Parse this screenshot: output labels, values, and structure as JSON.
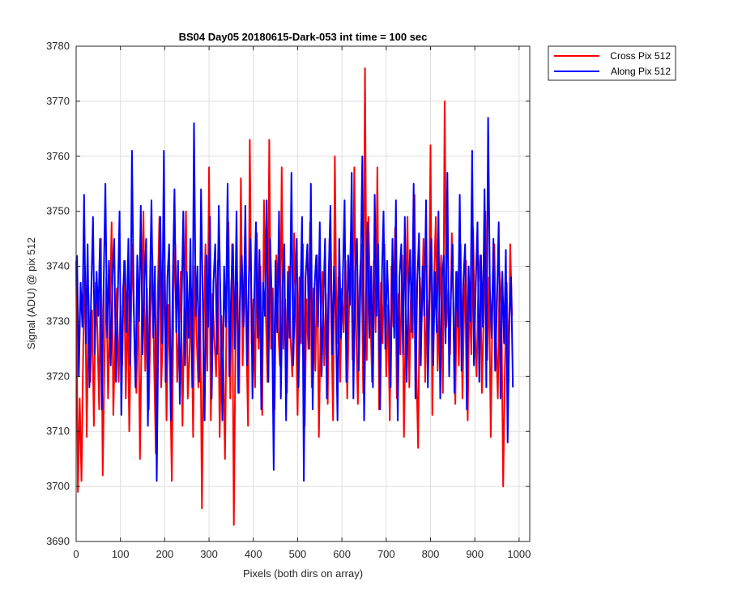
{
  "chart_data": {
    "type": "line",
    "title": "BS04 Day05 20180615-Dark-053 int time = 100 sec",
    "xlabel": "Pixels (both dirs on array)",
    "ylabel": "Signal (ADU) @ pix 512",
    "xlim": [
      0,
      1024
    ],
    "ylim": [
      3690,
      3780
    ],
    "xticks": [
      0,
      100,
      200,
      300,
      400,
      500,
      600,
      700,
      800,
      900,
      1000
    ],
    "yticks": [
      3690,
      3700,
      3710,
      3720,
      3730,
      3740,
      3750,
      3760,
      3770,
      3780
    ],
    "grid": true,
    "legend_position": "outside-top-right",
    "series": [
      {
        "name": "Cross Pix 512",
        "color": "#ff0000",
        "x_start": 0,
        "x_step": 4,
        "values": [
          3741,
          3699,
          3716,
          3701,
          3726,
          3740,
          3709,
          3735,
          3719,
          3732,
          3711,
          3737,
          3728,
          3714,
          3745,
          3702,
          3724,
          3738,
          3716,
          3731,
          3748,
          3713,
          3727,
          3736,
          3719,
          3733,
          3722,
          3741,
          3716,
          3735,
          3710,
          3731,
          3744,
          3724,
          3717,
          3737,
          3705,
          3729,
          3750,
          3721,
          3736,
          3714,
          3731,
          3742,
          3722,
          3706,
          3734,
          3749,
          3718,
          3728,
          3740,
          3712,
          3733,
          3722,
          3701,
          3735,
          3744,
          3719,
          3728,
          3739,
          3711,
          3732,
          3750,
          3716,
          3724,
          3736,
          3709,
          3740,
          3727,
          3718,
          3734,
          3696,
          3729,
          3744,
          3721,
          3758,
          3712,
          3735,
          3727,
          3720,
          3741,
          3709,
          3731,
          3723,
          3705,
          3735,
          3748,
          3716,
          3744,
          3693,
          3729,
          3737,
          3717,
          3756,
          3722,
          3739,
          3729,
          3711,
          3763,
          3726,
          3734,
          3718,
          3746,
          3725,
          3740,
          3713,
          3752,
          3732,
          3719,
          3763,
          3725,
          3736,
          3714,
          3742,
          3729,
          3722,
          3758,
          3725,
          3734,
          3717,
          3740,
          3727,
          3720,
          3746,
          3731,
          3713,
          3738,
          3726,
          3744,
          3711,
          3734,
          3725,
          3748,
          3718,
          3736,
          3721,
          3742,
          3709,
          3730,
          3739,
          3722,
          3735,
          3715,
          3745,
          3730,
          3712,
          3760,
          3726,
          3738,
          3719,
          3736,
          3728,
          3741,
          3716,
          3732,
          3746,
          3723,
          3758,
          3729,
          3715,
          3737,
          3744,
          3717,
          3776,
          3723,
          3749,
          3733,
          3719,
          3741,
          3728,
          3758,
          3714,
          3737,
          3726,
          3744,
          3720,
          3733,
          3712,
          3740,
          3729,
          3747,
          3716,
          3735,
          3724,
          3742,
          3709,
          3731,
          3749,
          3718,
          3736,
          3727,
          3753,
          3722,
          3707,
          3738,
          3730,
          3745,
          3719,
          3734,
          3726,
          3762,
          3713,
          3738,
          3749,
          3721,
          3733,
          3742,
          3717,
          3770,
          3729,
          3736,
          3724,
          3746,
          3731,
          3715,
          3739,
          3722,
          3744,
          3716,
          3733,
          3741,
          3712,
          3736,
          3724,
          3747,
          3729,
          3720,
          3737,
          3742,
          3717,
          3731,
          3750,
          3723,
          3738,
          3709,
          3735,
          3744,
          3727,
          3716,
          3739,
          3733,
          3700,
          3722,
          3737,
          3719,
          3744,
          3731
        ]
      },
      {
        "name": "Along Pix 512",
        "color": "#0000ff",
        "x_start": 2,
        "x_step": 4,
        "values": [
          3742,
          3720,
          3737,
          3729,
          3753,
          3726,
          3744,
          3718,
          3735,
          3749,
          3724,
          3739,
          3731,
          3745,
          3714,
          3736,
          3755,
          3727,
          3741,
          3722,
          3738,
          3745,
          3719,
          3734,
          3750,
          3713,
          3736,
          3741,
          3728,
          3745,
          3722,
          3761,
          3733,
          3718,
          3742,
          3730,
          3751,
          3724,
          3737,
          3745,
          3711,
          3734,
          3752,
          3727,
          3740,
          3701,
          3732,
          3749,
          3726,
          3761,
          3719,
          3738,
          3744,
          3712,
          3736,
          3754,
          3728,
          3741,
          3715,
          3733,
          3750,
          3722,
          3739,
          3727,
          3745,
          3718,
          3766,
          3731,
          3740,
          3719,
          3754,
          3733,
          3712,
          3742,
          3729,
          3749,
          3716,
          3737,
          3744,
          3724,
          3751,
          3733,
          3712,
          3740,
          3729,
          3755,
          3720,
          3736,
          3744,
          3725,
          3750,
          3717,
          3734,
          3742,
          3729,
          3751,
          3722,
          3738,
          3745,
          3716,
          3733,
          3748,
          3727,
          3743,
          3714,
          3737,
          3731,
          3752,
          3719,
          3745,
          3733,
          3703,
          3741,
          3728,
          3750,
          3716,
          3736,
          3744,
          3712,
          3739,
          3727,
          3757,
          3722,
          3735,
          3745,
          3718,
          3733,
          3749,
          3701,
          3738,
          3744,
          3725,
          3755,
          3714,
          3736,
          3742,
          3729,
          3748,
          3720,
          3733,
          3745,
          3716,
          3738,
          3751,
          3724,
          3740,
          3731,
          3712,
          3745,
          3727,
          3737,
          3752,
          3719,
          3742,
          3733,
          3757,
          3716,
          3739,
          3745,
          3721,
          3737,
          3760,
          3712,
          3734,
          3748,
          3727,
          3740,
          3718,
          3753,
          3731,
          3744,
          3714,
          3737,
          3750,
          3725,
          3741,
          3731,
          3718,
          3745,
          3727,
          3752,
          3712,
          3738,
          3744,
          3724,
          3749,
          3719,
          3734,
          3743,
          3728,
          3755,
          3716,
          3737,
          3746,
          3722,
          3740,
          3731,
          3752,
          3718,
          3735,
          3745,
          3722,
          3739,
          3728,
          3750,
          3716,
          3738,
          3742,
          3726,
          3757,
          3720,
          3735,
          3744,
          3717,
          3739,
          3729,
          3753,
          3721,
          3737,
          3744,
          3714,
          3740,
          3730,
          3761,
          3722,
          3736,
          3748,
          3719,
          3742,
          3729,
          3754,
          3718,
          3767,
          3736,
          3727,
          3745,
          3721,
          3733,
          3748,
          3716,
          3739,
          3726,
          3743,
          3708,
          3730,
          3738,
          3718
        ]
      }
    ]
  }
}
